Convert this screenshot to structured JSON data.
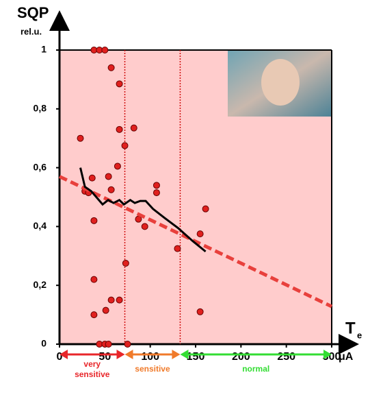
{
  "chart_data": {
    "type": "scatter",
    "ylabel": "SQP",
    "yunit": "rel.u.",
    "xlabel": "T",
    "xlabel_sub": "e",
    "xunit": "μA",
    "xlim": [
      0,
      300
    ],
    "ylim": [
      0,
      1
    ],
    "xticks": [
      0,
      50,
      100,
      150,
      200,
      250,
      300
    ],
    "yticks": [
      0,
      {
        "value": 0.2,
        "label": "0,2"
      },
      {
        "value": 0.4,
        "label": "0,4"
      },
      {
        "value": 0.6,
        "label": "0,6"
      },
      {
        "value": 0.8,
        "label": "0,8"
      },
      1
    ],
    "background": "#ffcccc",
    "series": [
      {
        "kind": "points",
        "color": "#e0201e",
        "x": [
          23,
          38,
          44,
          50,
          57,
          66,
          66,
          82,
          72,
          64,
          54,
          36,
          57,
          28,
          32,
          38,
          107,
          107,
          87,
          94,
          130,
          155,
          161,
          73,
          38,
          38,
          51,
          57,
          66,
          155,
          44,
          50,
          54,
          75
        ],
        "y": [
          0.7,
          1,
          1,
          1,
          0.94,
          0.885,
          0.73,
          0.735,
          0.675,
          0.605,
          0.57,
          0.565,
          0.525,
          0.52,
          0.515,
          0.42,
          0.54,
          0.515,
          0.425,
          0.4,
          0.325,
          0.375,
          0.46,
          0.275,
          0.22,
          0.1,
          0.115,
          0.15,
          0.15,
          0.11,
          0,
          0,
          0,
          0
        ]
      },
      {
        "kind": "dashed-line",
        "color": "#e8403c",
        "x": [
          0,
          300
        ],
        "y": [
          0.57,
          0.128
        ]
      },
      {
        "kind": "line",
        "color": "#000000",
        "x": [
          23,
          28,
          35,
          42,
          47.5,
          53.6,
          59.6,
          66,
          71,
          78,
          83,
          89,
          95,
          103,
          115.5,
          130.6,
          147,
          161
        ],
        "y": [
          0.6,
          0.535,
          0.52,
          0.495,
          0.475,
          0.49,
          0.48,
          0.49,
          0.475,
          0.49,
          0.48,
          0.487,
          0.487,
          0.46,
          0.43,
          0.395,
          0.35,
          0.315
        ]
      }
    ],
    "zones": [
      {
        "name": "very sensitive",
        "color": "#e8262a",
        "range": [
          0,
          72
        ]
      },
      {
        "name": "sensitive",
        "color": "#f07a2a",
        "range": [
          72,
          133
        ]
      },
      {
        "name": "normal",
        "color": "#33dd33",
        "range": [
          133,
          300
        ]
      }
    ]
  }
}
